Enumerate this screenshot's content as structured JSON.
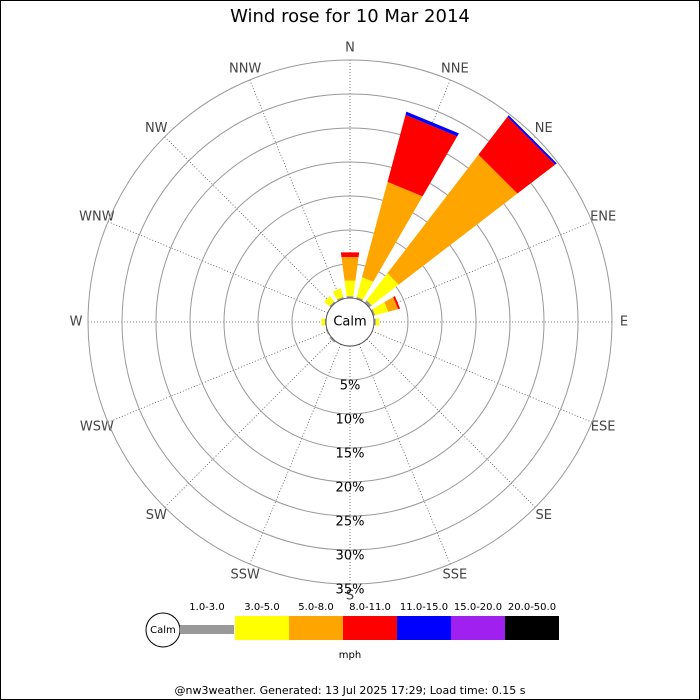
{
  "chart_data": {
    "type": "windrose",
    "title": "Wind rose for 10 Mar 2014",
    "categories": [
      "N",
      "NNE",
      "NE",
      "ENE",
      "E",
      "ESE",
      "SE",
      "SSE",
      "S",
      "SSW",
      "SW",
      "WSW",
      "W",
      "WNW",
      "NW",
      "NNW"
    ],
    "calm_label": "Calm",
    "units": "mph",
    "rlim": [
      0,
      35
    ],
    "rticks": [
      {
        "value": 5,
        "label": "5%"
      },
      {
        "value": 10,
        "label": "10%"
      },
      {
        "value": 15,
        "label": "15%"
      },
      {
        "value": 20,
        "label": "20%"
      },
      {
        "value": 25,
        "label": "25%"
      },
      {
        "value": 30,
        "label": "30%"
      },
      {
        "value": 35,
        "label": "35%"
      }
    ],
    "grid": true,
    "series": [
      {
        "name": "1.0-3.0",
        "color": "#999999",
        "values": [
          0.3,
          0.3,
          0.5,
          0.3,
          0.3,
          0,
          0,
          0,
          0,
          0,
          0.3,
          0.2,
          0.2,
          0,
          0.3,
          0.3
        ]
      },
      {
        "name": "3.0-5.0",
        "color": "#ffff00",
        "values": [
          2.3,
          3,
          5,
          2,
          0.5,
          0,
          0,
          0,
          0,
          0,
          0,
          0,
          0.5,
          0,
          1,
          1.3
        ]
      },
      {
        "name": "5.0-8.0",
        "color": "#ffa500",
        "values": [
          3.5,
          14.5,
          22,
          1.5,
          0,
          0,
          0,
          0,
          0,
          0,
          0,
          0,
          0,
          0,
          0,
          0
        ]
      },
      {
        "name": "8.0-11.0",
        "color": "#ff0000",
        "values": [
          0.7,
          10.2,
          7,
          0.3,
          0,
          0,
          0,
          0,
          0,
          0,
          0,
          0,
          0,
          0,
          0,
          0
        ]
      },
      {
        "name": "11.0-15.0",
        "color": "#0000ff",
        "values": [
          0,
          0.5,
          0.3,
          0,
          0,
          0,
          0,
          0,
          0,
          0,
          0,
          0,
          0,
          0,
          0,
          0
        ]
      },
      {
        "name": "15.0-20.0",
        "color": "#a020f0",
        "values": [
          0,
          0,
          0,
          0,
          0,
          0,
          0,
          0,
          0,
          0,
          0,
          0,
          0,
          0,
          0,
          0
        ]
      },
      {
        "name": "20.0-50.0",
        "color": "#000000",
        "values": [
          0,
          0,
          0,
          0,
          0,
          0,
          0,
          0,
          0,
          0,
          0,
          0,
          0,
          0,
          0,
          0
        ]
      }
    ],
    "footer": "@nw3weather. Generated: 13 Jul 2025 17:29; Load time: 0.15 s"
  }
}
